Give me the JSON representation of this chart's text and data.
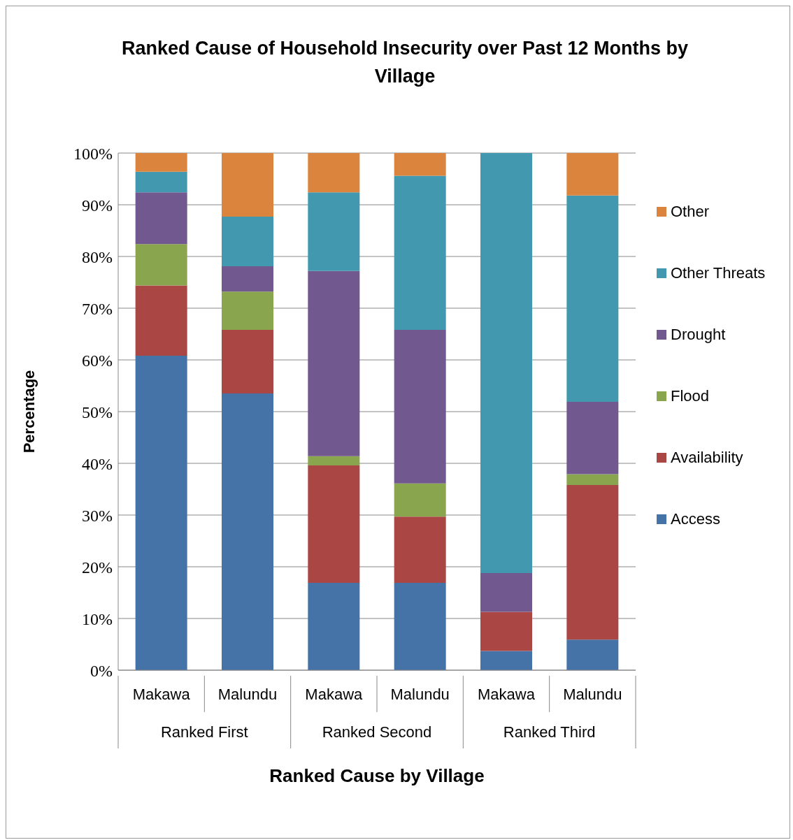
{
  "chart_data": {
    "type": "bar",
    "stacked": true,
    "title": "Ranked Cause of Household Insecurity over Past 12 Months by Village",
    "xlabel": "Ranked Cause by Village",
    "ylabel": "Percentage",
    "categories": [
      "Makawa",
      "Malundu",
      "Makawa",
      "Malundu",
      "Makawa",
      "Malundu"
    ],
    "annotations": [
      "Ranked First",
      "Ranked Second",
      "Ranked Third"
    ],
    "series": [
      {
        "name": "Access",
        "color": "#4573a7",
        "values": [
          60.8,
          53.5,
          16.9,
          16.9,
          3.7,
          5.9
        ]
      },
      {
        "name": "Availability",
        "color": "#aa4644",
        "values": [
          13.6,
          12.3,
          22.7,
          12.8,
          7.6,
          29.9
        ]
      },
      {
        "name": "Flood",
        "color": "#89a54e",
        "values": [
          8,
          7.4,
          1.8,
          6.4,
          0,
          2.1
        ]
      },
      {
        "name": "Drought",
        "color": "#71588f",
        "values": [
          10,
          4.9,
          35.8,
          29.7,
          7.5,
          14
        ]
      },
      {
        "name": "Other Threats",
        "color": "#4298af",
        "values": [
          4,
          9.6,
          15.2,
          29.8,
          81.2,
          39.9
        ]
      },
      {
        "name": "Other",
        "color": "#db843d",
        "values": [
          3.6,
          12.3,
          7.6,
          4.4,
          0,
          8.2
        ]
      }
    ],
    "ylim": [
      0,
      100
    ],
    "yticks": [
      {
        "value": 0,
        "label": "0%"
      },
      {
        "value": 10,
        "label": "10%"
      },
      {
        "value": 20,
        "label": "20%"
      },
      {
        "value": 30,
        "label": "30%"
      },
      {
        "value": 40,
        "label": "40%"
      },
      {
        "value": 50,
        "label": "50%"
      },
      {
        "value": 60,
        "label": "60%"
      },
      {
        "value": 70,
        "label": "70%"
      },
      {
        "value": 80,
        "label": "80%"
      },
      {
        "value": 90,
        "label": "90%"
      },
      {
        "value": 100,
        "label": "100%"
      }
    ],
    "grid": "y",
    "legend": "right"
  }
}
